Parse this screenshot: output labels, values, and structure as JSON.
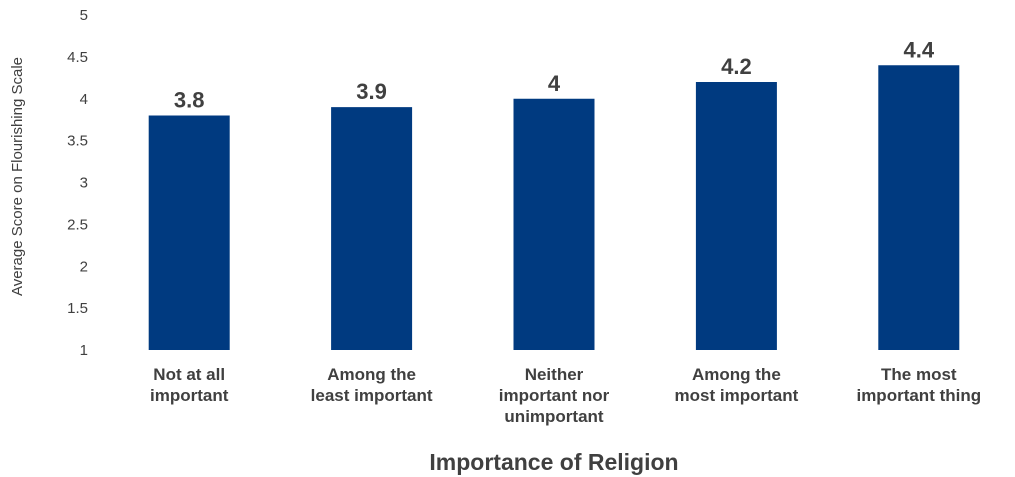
{
  "chart_data": {
    "type": "bar",
    "categories": [
      [
        "Not at all",
        "important"
      ],
      [
        "Among the",
        "least important"
      ],
      [
        "Neither",
        "important nor",
        "unimportant"
      ],
      [
        "Among the",
        "most important"
      ],
      [
        "The most",
        "important thing"
      ]
    ],
    "values": [
      3.8,
      3.9,
      4,
      4.2,
      4.4
    ],
    "value_labels": [
      "3.8",
      "3.9",
      "4",
      "4.2",
      "4.4"
    ],
    "title": "",
    "xlabel": "Importance of Religion",
    "ylabel": "Average Score on Flourishing Scale",
    "ylim": [
      1,
      5
    ],
    "yticks": [
      "1",
      "1.5",
      "2",
      "2.5",
      "3",
      "3.5",
      "4",
      "4.5",
      "5"
    ],
    "grid": false,
    "legend": "none",
    "bar_color": "#003A80"
  }
}
